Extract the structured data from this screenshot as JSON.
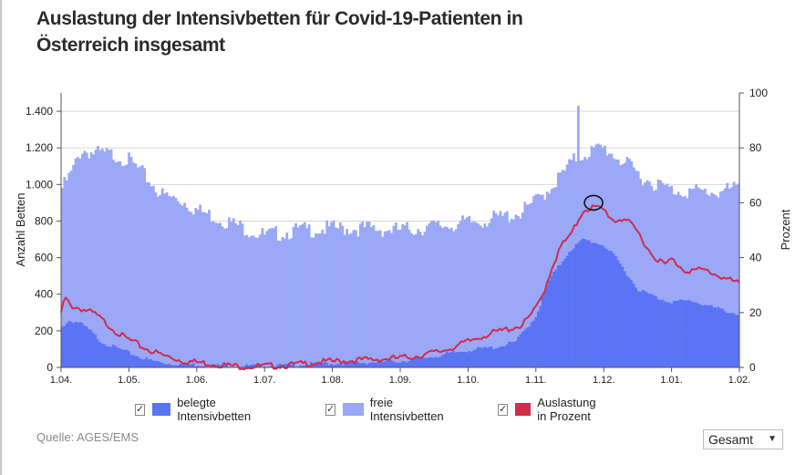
{
  "title": "Auslastung der Intensivbetten für Covid-19-Patienten in Österreich insgesamt",
  "legend": [
    {
      "label": "belegte Intensivbetten",
      "color": "#5b73f5",
      "checked": true,
      "check_glyph": "✓"
    },
    {
      "label": "freie Intensivbetten",
      "color": "#9aa8f7",
      "checked": true,
      "check_glyph": "✓"
    },
    {
      "label": "Auslastung in Prozent",
      "color": "#d22b4b",
      "checked": true,
      "check_glyph": "✓"
    }
  ],
  "source": "Quelle: AGES/EMS",
  "dropdown": {
    "selected": "Gesamt",
    "icon": "chevron-down-icon",
    "glyph": "▼"
  },
  "chart_data": {
    "type": "area",
    "xlabel": "",
    "ylabel": "Anzahl Betten",
    "ylabel_right": "Prozent",
    "x_ticks": [
      "1.04.",
      "1.05.",
      "1.06.",
      "1.07.",
      "1.08.",
      "1.09.",
      "1.10.",
      "1.11.",
      "1.12.",
      "1.01.",
      "1.02."
    ],
    "y_left": {
      "min": 0,
      "max": 1500,
      "ticks": [
        0,
        200,
        400,
        600,
        800,
        1000,
        1200,
        1400
      ],
      "tick_labels": [
        "0",
        "200",
        "400",
        "600",
        "800",
        "1.000",
        "1.200",
        "1.400"
      ]
    },
    "y_right": {
      "min": 0,
      "max": 100,
      "ticks": [
        0,
        20,
        40,
        60,
        80,
        100
      ],
      "tick_labels": [
        "0",
        "20",
        "40",
        "60",
        "80",
        "100"
      ]
    },
    "grid": true,
    "x_index_range": [
      0,
      10
    ],
    "series": [
      {
        "name": "belegte Intensivbetten",
        "kind": "bar",
        "axis": "left",
        "color": "#5b73f5",
        "points": [
          [
            0,
            215
          ],
          [
            0.1,
            255
          ],
          [
            0.25,
            250
          ],
          [
            0.4,
            210
          ],
          [
            0.6,
            140
          ],
          [
            0.8,
            110
          ],
          [
            1.0,
            80
          ],
          [
            1.3,
            40
          ],
          [
            1.6,
            22
          ],
          [
            2.0,
            15
          ],
          [
            2.5,
            10
          ],
          [
            3.0,
            8
          ],
          [
            3.3,
            12
          ],
          [
            3.6,
            18
          ],
          [
            4.0,
            22
          ],
          [
            4.5,
            28
          ],
          [
            5.0,
            35
          ],
          [
            5.5,
            60
          ],
          [
            6.0,
            95
          ],
          [
            6.4,
            110
          ],
          [
            6.7,
            140
          ],
          [
            7.0,
            280
          ],
          [
            7.2,
            480
          ],
          [
            7.5,
            640
          ],
          [
            7.7,
            700
          ],
          [
            8.0,
            670
          ],
          [
            8.2,
            590
          ],
          [
            8.5,
            430
          ],
          [
            8.8,
            380
          ],
          [
            9.0,
            360
          ],
          [
            9.3,
            365
          ],
          [
            9.6,
            330
          ],
          [
            10.0,
            290
          ]
        ]
      },
      {
        "name": "freie Intensivbetten",
        "kind": "bar",
        "axis": "left",
        "stacked_total": true,
        "color": "#9aa8f7",
        "points": [
          [
            0,
            970
          ],
          [
            0.15,
            1060
          ],
          [
            0.3,
            1190
          ],
          [
            0.5,
            1170
          ],
          [
            0.8,
            1160
          ],
          [
            1.0,
            1130
          ],
          [
            1.2,
            1060
          ],
          [
            1.5,
            940
          ],
          [
            1.8,
            910
          ],
          [
            2.0,
            860
          ],
          [
            2.5,
            790
          ],
          [
            3.0,
            720
          ],
          [
            3.5,
            750
          ],
          [
            4.0,
            760
          ],
          [
            4.5,
            760
          ],
          [
            5.0,
            750
          ],
          [
            5.5,
            770
          ],
          [
            6.0,
            790
          ],
          [
            6.5,
            820
          ],
          [
            6.8,
            850
          ],
          [
            7.0,
            910
          ],
          [
            7.2,
            980
          ],
          [
            7.4,
            1060
          ],
          [
            7.6,
            1150
          ],
          [
            7.8,
            1180
          ],
          [
            8.0,
            1200
          ],
          [
            8.2,
            1150
          ],
          [
            8.4,
            1090
          ],
          [
            8.6,
            1030
          ],
          [
            9.0,
            970
          ],
          [
            9.4,
            960
          ],
          [
            9.7,
            960
          ],
          [
            10.0,
            980
          ]
        ],
        "spikes": [
          [
            7.62,
            1430
          ]
        ]
      },
      {
        "name": "Auslastung in Prozent",
        "kind": "line",
        "axis": "right",
        "color": "#d22b4b",
        "points": [
          [
            0,
            20
          ],
          [
            0.05,
            26
          ],
          [
            0.15,
            23
          ],
          [
            0.3,
            22
          ],
          [
            0.5,
            20
          ],
          [
            0.7,
            16
          ],
          [
            0.9,
            12
          ],
          [
            1.2,
            8
          ],
          [
            1.5,
            5
          ],
          [
            1.8,
            3
          ],
          [
            2.2,
            2
          ],
          [
            2.6,
            1
          ],
          [
            3.0,
            1
          ],
          [
            3.4,
            1.5
          ],
          [
            3.8,
            2.5
          ],
          [
            4.2,
            3
          ],
          [
            4.6,
            3.5
          ],
          [
            5.0,
            4
          ],
          [
            5.3,
            5
          ],
          [
            5.6,
            6.5
          ],
          [
            5.9,
            9
          ],
          [
            6.2,
            12
          ],
          [
            6.5,
            14
          ],
          [
            6.8,
            16
          ],
          [
            7.0,
            22
          ],
          [
            7.1,
            27
          ],
          [
            7.25,
            38
          ],
          [
            7.4,
            46
          ],
          [
            7.5,
            48
          ],
          [
            7.6,
            53
          ],
          [
            7.7,
            58
          ],
          [
            7.85,
            59
          ],
          [
            8.0,
            58
          ],
          [
            8.15,
            54
          ],
          [
            8.3,
            55
          ],
          [
            8.5,
            50
          ],
          [
            8.7,
            42
          ],
          [
            8.9,
            38
          ],
          [
            9.0,
            40
          ],
          [
            9.2,
            36
          ],
          [
            9.5,
            36
          ],
          [
            9.8,
            33
          ],
          [
            10.0,
            31
          ]
        ]
      }
    ],
    "annotations": [
      {
        "type": "circle",
        "x": 7.85,
        "y_right": 60
      }
    ]
  }
}
